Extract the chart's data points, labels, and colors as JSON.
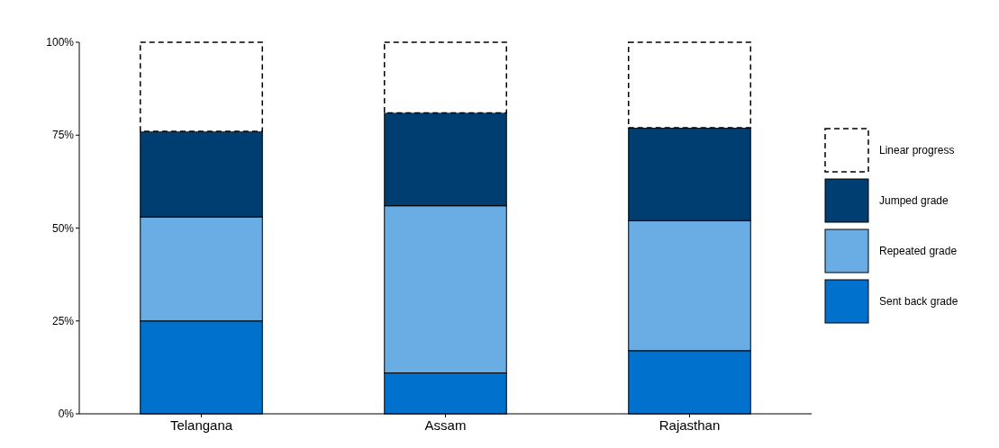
{
  "chart_data": {
    "type": "bar",
    "stacked": true,
    "categories": [
      "Telangana",
      "Assam",
      "Rajasthan"
    ],
    "series": [
      {
        "name": "Sent back grade",
        "color": "#0072ce",
        "values": [
          25,
          11,
          17
        ]
      },
      {
        "name": "Repeated grade",
        "color": "#6aade4",
        "values": [
          28,
          45,
          35
        ]
      },
      {
        "name": "Jumped grade",
        "color": "#003d71",
        "values": [
          23,
          25,
          25
        ]
      },
      {
        "name": "Linear progress",
        "color": "#ffffff",
        "values": [
          24,
          19,
          23
        ],
        "line_style": "dashed"
      }
    ],
    "ylim": [
      0,
      100
    ],
    "yticks": [
      {
        "value": 0,
        "label": "0%"
      },
      {
        "value": 25,
        "label": "25%"
      },
      {
        "value": 50,
        "label": "50%"
      },
      {
        "value": 75,
        "label": "75%"
      },
      {
        "value": 100,
        "label": "100%"
      }
    ],
    "grid": false,
    "legend": "right"
  }
}
